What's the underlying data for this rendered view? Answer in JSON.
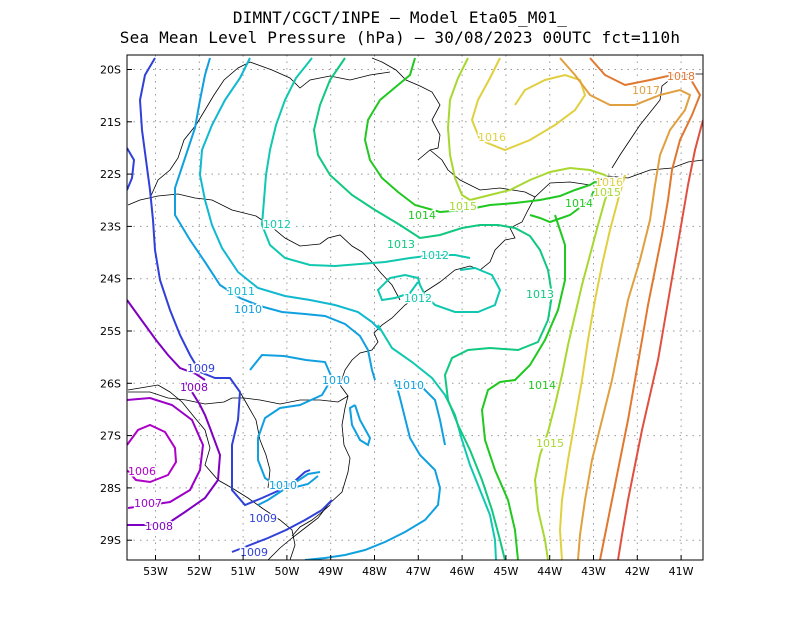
{
  "title": {
    "line1": "DIMNT/CGCT/INPE –  Model Eta05_M01_",
    "line2": "Sea Mean Level Pressure (hPa) – 30/08/2023 00UTC fct=110h"
  },
  "axes": {
    "lon_ticks": [
      "53W",
      "52W",
      "51W",
      "50W",
      "49W",
      "48W",
      "47W",
      "46W",
      "45W",
      "44W",
      "43W",
      "42W",
      "41W"
    ],
    "lat_ticks": [
      "20S",
      "21S",
      "22S",
      "23S",
      "24S",
      "25S",
      "26S",
      "27S",
      "28S",
      "29S"
    ]
  },
  "isobar_colors": {
    "1006": "#b000c8",
    "1007": "#9a00c8",
    "1008": "#7f00c0",
    "1009": "#3040d8",
    "1010": "#10a0e0",
    "1011": "#10b8d0",
    "1012": "#10c8b0",
    "1013": "#10c880",
    "1014": "#20c820",
    "1015": "#a8d830",
    "1016": "#e0d040",
    "1017": "#e0a040",
    "1018": "#e07830",
    "1019": "#e05040"
  },
  "contour_labels": [
    {
      "text": "1018",
      "key": "1018"
    },
    {
      "text": "1017",
      "key": "1017"
    },
    {
      "text": "1016",
      "key": "1016"
    },
    {
      "text": "1016",
      "key": "1016"
    },
    {
      "text": "1015",
      "key": "1015"
    },
    {
      "text": "1015",
      "key": "1015"
    },
    {
      "text": "1014",
      "key": "1014"
    },
    {
      "text": "1014",
      "key": "1014"
    },
    {
      "text": "1015",
      "key": "1015"
    },
    {
      "text": "1014",
      "key": "1014"
    },
    {
      "text": "1013",
      "key": "1013"
    },
    {
      "text": "1013",
      "key": "1013"
    },
    {
      "text": "1012",
      "key": "1012"
    },
    {
      "text": "1012",
      "key": "1012"
    },
    {
      "text": "1012",
      "key": "1012"
    },
    {
      "text": "1011",
      "key": "1011"
    },
    {
      "text": "1010",
      "key": "1010"
    },
    {
      "text": "1010",
      "key": "1010"
    },
    {
      "text": "1010",
      "key": "1010"
    },
    {
      "text": "1010",
      "key": "1010"
    },
    {
      "text": "1009",
      "key": "1009"
    },
    {
      "text": "1009",
      "key": "1009"
    },
    {
      "text": "1009",
      "key": "1009"
    },
    {
      "text": "1008",
      "key": "1008"
    },
    {
      "text": "1008",
      "key": "1008"
    },
    {
      "text": "1007",
      "key": "1007"
    },
    {
      "text": "1006",
      "key": "1006"
    }
  ]
}
